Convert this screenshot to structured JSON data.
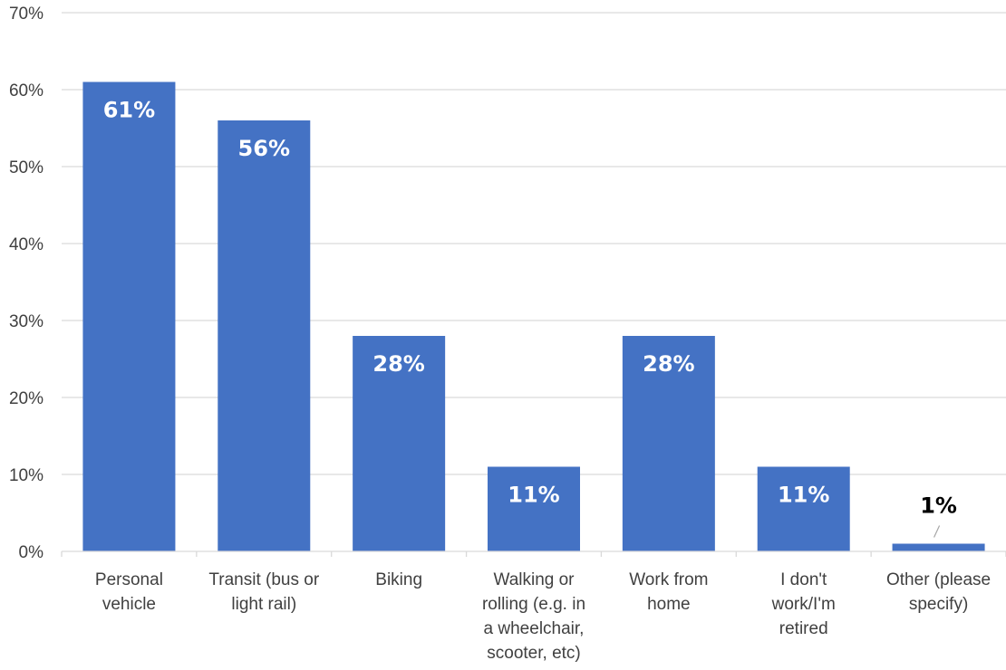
{
  "chart_data": {
    "type": "bar",
    "categories": [
      [
        "Personal",
        "vehicle"
      ],
      [
        "Transit (bus or",
        "light rail)"
      ],
      [
        "Biking"
      ],
      [
        "Walking or",
        "rolling (e.g. in",
        "a wheelchair,",
        "scooter, etc)"
      ],
      [
        "Work from",
        "home"
      ],
      [
        "I don't",
        "work/I'm",
        "retired"
      ],
      [
        "Other (please",
        "specify)"
      ]
    ],
    "values": [
      61,
      56,
      28,
      11,
      28,
      11,
      1
    ],
    "value_labels": [
      "61%",
      "56%",
      "28%",
      "11%",
      "28%",
      "11%",
      "1%"
    ],
    "ylim": [
      0,
      70
    ],
    "yticks": [
      0,
      10,
      20,
      30,
      40,
      50,
      60,
      70
    ],
    "ytick_labels": [
      "0%",
      "10%",
      "20%",
      "30%",
      "40%",
      "50%",
      "60%",
      "70%"
    ],
    "bar_color": "#4472C4",
    "gridlines": true,
    "legend": "none"
  }
}
